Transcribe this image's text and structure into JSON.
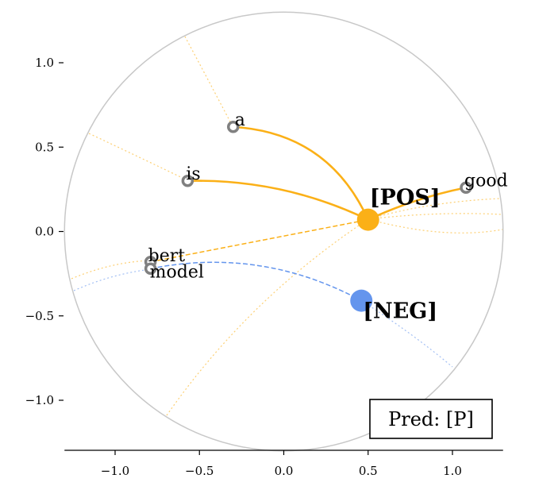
{
  "chart_data": {
    "type": "scatter",
    "title": "",
    "xlabel": "",
    "ylabel": "",
    "xlim": [
      -1.3,
      1.3
    ],
    "ylim": [
      -1.3,
      1.3
    ],
    "x_ticks": [
      -1.0,
      -0.5,
      0.0,
      0.5,
      1.0
    ],
    "x_tick_labels": [
      "−1.0",
      "−0.5",
      "0.0",
      "0.5",
      "1.0"
    ],
    "y_ticks": [
      1.0,
      0.5,
      0.0,
      -0.5,
      -1.0
    ],
    "y_tick_labels": [
      "1.0",
      "0.5",
      "0.0",
      "−0.5",
      "−1.0"
    ],
    "boundary_radius": 1.3,
    "tokens": [
      {
        "label": "a",
        "x": -0.3,
        "y": 0.62
      },
      {
        "label": "is",
        "x": -0.57,
        "y": 0.3
      },
      {
        "label": "good",
        "x": 1.08,
        "y": 0.26
      },
      {
        "label": "bert",
        "x": -0.79,
        "y": -0.18
      },
      {
        "label": "model",
        "x": -0.79,
        "y": -0.22
      }
    ],
    "class_points": [
      {
        "label": "[POS]",
        "x": 0.5,
        "y": 0.07,
        "color": "#fbb017"
      },
      {
        "label": "[NEG]",
        "x": 0.46,
        "y": -0.41,
        "color": "#6495ed"
      }
    ],
    "solid_links": [
      {
        "from": "a",
        "to": "[POS]",
        "bend": -0.3
      },
      {
        "from": "is",
        "to": "[POS]",
        "bend": -0.12
      },
      {
        "from": "good",
        "to": "[POS]",
        "bend": 0.06
      }
    ],
    "dashed_links": [
      {
        "from": "bert",
        "to": "[POS]",
        "color": "#fbb017"
      },
      {
        "from": "model",
        "to": "[NEG]",
        "color": "#6495ed"
      }
    ],
    "prediction": "Pred: [P]",
    "colors": {
      "pos": "#fbb017",
      "neg": "#6495ed",
      "token": "#808080",
      "boundary": "#c8c8c8"
    }
  }
}
